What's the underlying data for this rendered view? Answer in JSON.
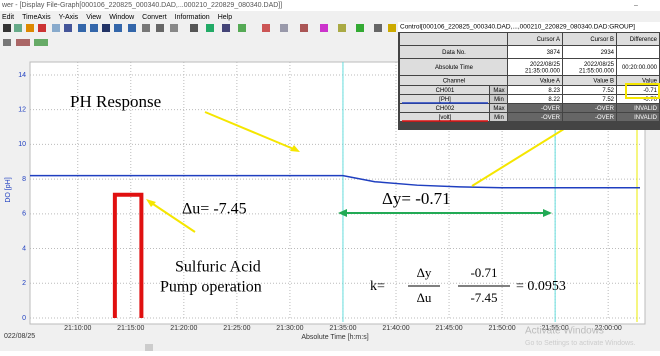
{
  "window": {
    "title": "wer - [Display File-Graph[000106_220825_000340.DAD,...000210_220829_080340.DAD]]",
    "menu": [
      "Edit",
      "TimeAxis",
      "Y-Axis",
      "View",
      "Window",
      "Convert",
      "Information",
      "Help"
    ]
  },
  "graph": {
    "type": "line",
    "y_label": "DO [pH]",
    "x_label": "Absolute Time [h:m:s]",
    "date": "022/08/25",
    "xlim": [
      "21:05:30",
      "22:03:00"
    ],
    "xticks": [
      "21:10:00",
      "21:15:00",
      "21:20:00",
      "21:25:00",
      "21:30:00",
      "21:35:00",
      "21:40:00",
      "21:45:00",
      "21:50:00",
      "21:55:00",
      "22:00:00"
    ],
    "ylim": [
      0,
      14.4
    ],
    "yticks": [
      0,
      2,
      4,
      6,
      8,
      10,
      12,
      14
    ],
    "grid": true,
    "series": [
      {
        "color": "#1f3fc0",
        "x": [
          "21:05:30",
          "21:35:00",
          "21:38:00",
          "21:42:00",
          "21:46:00",
          "21:50:00",
          "22:03:00"
        ],
        "values": [
          8.2,
          8.2,
          7.85,
          7.65,
          7.55,
          7.5,
          7.5
        ]
      },
      {
        "color": "#e01010",
        "x": [
          "21:13:30",
          "21:13:30",
          "21:16:00",
          "21:16:00"
        ],
        "values": [
          0,
          7.1,
          7.1,
          0
        ]
      }
    ],
    "cursors": [
      "21:35:00",
      "21:55:00"
    ]
  },
  "annotations": {
    "ph": "PH Response",
    "du": "Δu= -7.45",
    "dy": "Δy= -0.71",
    "acid1": "Sulfuric Acid",
    "acid2": "Pump operation",
    "k": "k=",
    "dy_sym": "Δy",
    "du_sym": "Δu",
    "dy_val": "-0.71",
    "du_val": "-7.45",
    "result": "= 0.0953"
  },
  "control": {
    "title": "Control[000106_220825_000340.DAD,...,000210_220829_080340.DAD:GROUP]",
    "columns": [
      "Cursor A",
      "Cursor B",
      "Difference"
    ],
    "data_no": {
      "label": "Data No.",
      "cells": [
        "3874",
        "2934"
      ]
    },
    "abs_time": {
      "label": "Absolute Time",
      "cells": [
        [
          "2022/08/25",
          "21:35:00.000"
        ],
        [
          "2022/08/25",
          "21:55:00.000"
        ],
        [
          "00:20:00.000"
        ]
      ]
    },
    "channel": {
      "label": "Channel",
      "cells": [
        "Value A",
        "Value B",
        "Value"
      ]
    },
    "channels": [
      {
        "name": "CH001",
        "unit": "[PH]",
        "max": [
          "8.23",
          "7.52",
          "-0.71"
        ],
        "min": [
          "8.22",
          "7.52",
          "-0.70"
        ]
      },
      {
        "name": "CH002",
        "unit": "[volt]",
        "max": [
          "-OVER",
          "-OVER",
          "INVALID"
        ],
        "min": [
          "-OVER",
          "-OVER",
          "INVALID"
        ]
      }
    ],
    "max": "Max",
    "min": "Min"
  },
  "watermark": [
    "Activate Windows",
    "Go to Settings to activate Windows."
  ]
}
